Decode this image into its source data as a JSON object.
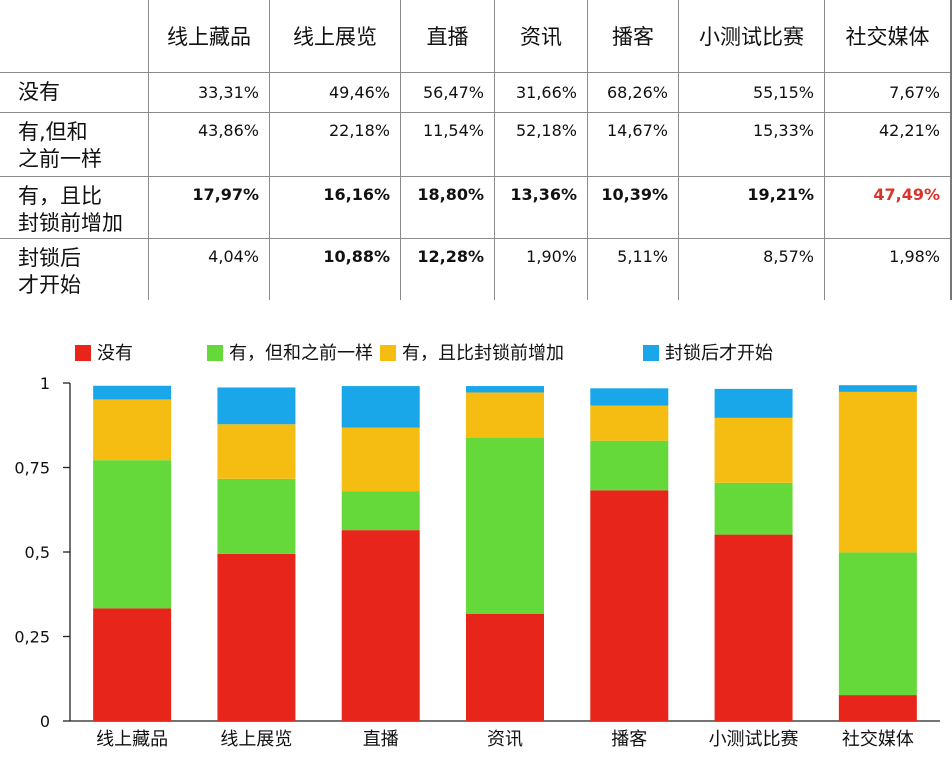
{
  "table": {
    "columns": [
      "线上藏品",
      "线上展览",
      "直播",
      "资讯",
      "播客",
      "小测试比赛",
      "社交媒体"
    ],
    "rows": [
      {
        "label": "没有",
        "cells": [
          {
            "text": "33,31%",
            "bold": false,
            "red": false
          },
          {
            "text": "49,46%",
            "bold": false,
            "red": false
          },
          {
            "text": "56,47%",
            "bold": false,
            "red": false
          },
          {
            "text": "31,66%",
            "bold": false,
            "red": false
          },
          {
            "text": "68,26%",
            "bold": false,
            "red": false
          },
          {
            "text": "55,15%",
            "bold": false,
            "red": false
          },
          {
            "text": "7,67%",
            "bold": false,
            "red": false
          }
        ]
      },
      {
        "label": "有,但和\n之前一样",
        "cells": [
          {
            "text": "43,86%",
            "bold": false,
            "red": false
          },
          {
            "text": "22,18%",
            "bold": false,
            "red": false
          },
          {
            "text": "11,54%",
            "bold": false,
            "red": false
          },
          {
            "text": "52,18%",
            "bold": false,
            "red": false
          },
          {
            "text": "14,67%",
            "bold": false,
            "red": false
          },
          {
            "text": "15,33%",
            "bold": false,
            "red": false
          },
          {
            "text": "42,21%",
            "bold": false,
            "red": false
          }
        ]
      },
      {
        "label": "有，且比\n封锁前增加",
        "cells": [
          {
            "text": "17,97%",
            "bold": true,
            "red": false
          },
          {
            "text": "16,16%",
            "bold": true,
            "red": false
          },
          {
            "text": "18,80%",
            "bold": true,
            "red": false
          },
          {
            "text": "13,36%",
            "bold": true,
            "red": false
          },
          {
            "text": "10,39%",
            "bold": true,
            "red": false
          },
          {
            "text": "19,21%",
            "bold": true,
            "red": false
          },
          {
            "text": "47,49%",
            "bold": true,
            "red": true
          }
        ]
      },
      {
        "label": "封锁后\n才开始",
        "cells": [
          {
            "text": "4,04%",
            "bold": false,
            "red": false
          },
          {
            "text": "10,88%",
            "bold": true,
            "red": false
          },
          {
            "text": "12,28%",
            "bold": true,
            "red": false
          },
          {
            "text": "1,90%",
            "bold": false,
            "red": false
          },
          {
            "text": "5,11%",
            "bold": false,
            "red": false
          },
          {
            "text": "8,57%",
            "bold": false,
            "red": false
          },
          {
            "text": "1,98%",
            "bold": false,
            "red": false
          }
        ]
      }
    ]
  },
  "chart_data": {
    "type": "bar",
    "stacked": true,
    "categories": [
      "线上藏品",
      "线上展览",
      "直播",
      "资讯",
      "播客",
      "小测试比赛",
      "社交媒体"
    ],
    "series": [
      {
        "name": "没有",
        "color": "#e8251b",
        "values": [
          0.3331,
          0.4946,
          0.5647,
          0.3166,
          0.6826,
          0.5515,
          0.0767
        ]
      },
      {
        "name": "有，但和之前一样",
        "color": "#66d93a",
        "values": [
          0.4386,
          0.2218,
          0.1154,
          0.5218,
          0.1467,
          0.1533,
          0.4221
        ]
      },
      {
        "name": "有，且比封锁前增加",
        "color": "#f5bd12",
        "values": [
          0.1797,
          0.1616,
          0.188,
          0.1336,
          0.1039,
          0.1921,
          0.4749
        ]
      },
      {
        "name": "封锁后才开始",
        "color": "#1aa7ea",
        "values": [
          0.0404,
          0.1088,
          0.1228,
          0.019,
          0.0511,
          0.0857,
          0.0198
        ]
      }
    ],
    "yticks": [
      "0",
      "0,25",
      "0,5",
      "0,75",
      "1"
    ],
    "ylim": [
      0,
      1
    ],
    "legend_position": "top",
    "grid": false
  }
}
